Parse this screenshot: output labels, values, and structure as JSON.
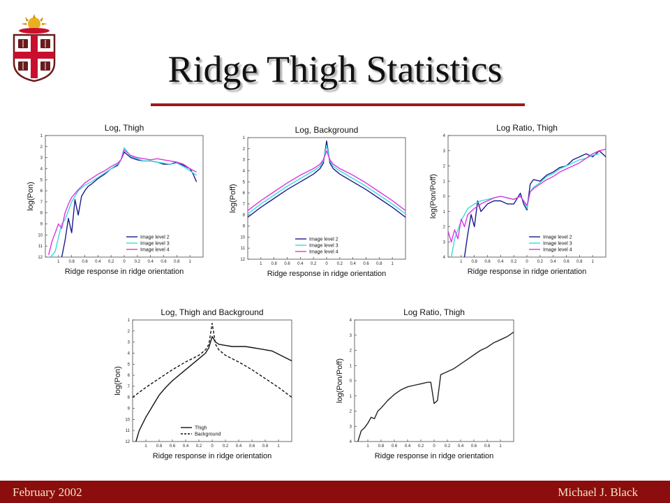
{
  "slide": {
    "title": "Ridge Thigh Statistics",
    "footer_left": "February 2002",
    "footer_right": "Michael J. Black",
    "accent_color": "#9e1b1b",
    "footer_color": "#8b0d0d"
  },
  "logo": {
    "icon": "brown-university-shield-icon"
  },
  "chart_data": [
    {
      "type": "line",
      "title": "Log, Thigh",
      "xlabel": "Ridge response in ridge orientation",
      "ylabel": "log(Pon)",
      "xlim": [
        -1.2,
        1.2
      ],
      "ylim": [
        -12,
        -1
      ],
      "xticks": [
        -1,
        -0.8,
        -0.6,
        -0.4,
        -0.2,
        0,
        0.2,
        0.4,
        0.6,
        0.8,
        1
      ],
      "xtick_labels": [
        "1",
        "0.8",
        "0.6",
        "0.4",
        "0.2",
        "0",
        "0.2",
        "0.4",
        "0.6",
        "0.8",
        "1"
      ],
      "yticks": [
        -1,
        -2,
        -3,
        -4,
        -5,
        -6,
        -7,
        -8,
        -9,
        -10,
        -11,
        -12
      ],
      "ytick_labels": [
        "1",
        "2",
        "3",
        "4",
        "5",
        "6",
        "7",
        "8",
        "9",
        "10",
        "11",
        "12"
      ],
      "legend": "bottom-right",
      "series": [
        {
          "name": "Image level 2",
          "color": "#1a1a8c",
          "x": [
            -0.95,
            -0.9,
            -0.85,
            -0.8,
            -0.75,
            -0.7,
            -0.65,
            -0.6,
            -0.55,
            -0.5,
            -0.4,
            -0.3,
            -0.2,
            -0.1,
            -0.05,
            0,
            0.1,
            0.2,
            0.3,
            0.4,
            0.5,
            0.6,
            0.7,
            0.8,
            0.9,
            1.0,
            1.05,
            1.1
          ],
          "y": [
            -12,
            -10.5,
            -8.5,
            -9.8,
            -6.8,
            -8.2,
            -6.5,
            -6.0,
            -5.6,
            -5.4,
            -4.9,
            -4.5,
            -4.0,
            -3.7,
            -3.2,
            -2.5,
            -3.0,
            -3.2,
            -3.3,
            -3.3,
            -3.4,
            -3.6,
            -3.6,
            -3.4,
            -3.7,
            -4.0,
            -4.5,
            -5.2
          ]
        },
        {
          "name": "Image level 3",
          "color": "#33dddd",
          "x": [
            -1.12,
            -1.05,
            -1.0,
            -0.95,
            -0.9,
            -0.85,
            -0.8,
            -0.75,
            -0.7,
            -0.6,
            -0.5,
            -0.4,
            -0.3,
            -0.2,
            -0.1,
            -0.05,
            0,
            0.1,
            0.2,
            0.3,
            0.4,
            0.5,
            0.6,
            0.7,
            0.8,
            0.9,
            1.0,
            1.1
          ],
          "y": [
            -12,
            -11.5,
            -10.2,
            -9.0,
            -8.6,
            -7.8,
            -7.0,
            -6.5,
            -6.0,
            -5.5,
            -5.2,
            -4.8,
            -4.4,
            -4.0,
            -3.6,
            -3.2,
            -2.1,
            -2.9,
            -3.1,
            -3.3,
            -3.3,
            -3.4,
            -3.5,
            -3.6,
            -3.5,
            -3.8,
            -4.2,
            -4.6
          ]
        },
        {
          "name": "Image level 4",
          "color": "#dd33dd",
          "x": [
            -1.15,
            -1.1,
            -1.05,
            -1.0,
            -0.95,
            -0.9,
            -0.85,
            -0.8,
            -0.7,
            -0.6,
            -0.5,
            -0.4,
            -0.3,
            -0.2,
            -0.1,
            -0.05,
            0,
            0.1,
            0.2,
            0.3,
            0.4,
            0.5,
            0.6,
            0.7,
            0.8,
            0.9,
            1.0,
            1.1
          ],
          "y": [
            -11.8,
            -10.6,
            -9.8,
            -9.0,
            -9.4,
            -8.0,
            -7.2,
            -6.6,
            -5.9,
            -5.3,
            -4.9,
            -4.5,
            -4.2,
            -3.8,
            -3.5,
            -3.2,
            -2.3,
            -2.8,
            -3.0,
            -3.1,
            -3.2,
            -3.1,
            -3.2,
            -3.3,
            -3.4,
            -3.6,
            -4.0,
            -4.3
          ]
        }
      ]
    },
    {
      "type": "line",
      "title": "Log, Background",
      "xlabel": "Ridge response in ridge orientation",
      "ylabel": "log(Poff)",
      "xlim": [
        -1.2,
        1.2
      ],
      "ylim": [
        -12,
        -1
      ],
      "xticks": [
        -1,
        -0.8,
        -0.6,
        -0.4,
        -0.2,
        0,
        0.2,
        0.4,
        0.6,
        0.8,
        1
      ],
      "xtick_labels": [
        "1",
        "0.8",
        "0.6",
        "0.4",
        "0.2",
        "0",
        "0.2",
        "0.4",
        "0.6",
        "0.8",
        "1"
      ],
      "yticks": [
        -1,
        -2,
        -3,
        -4,
        -5,
        -6,
        -7,
        -8,
        -9,
        -10,
        -11,
        -12
      ],
      "ytick_labels": [
        "1",
        "2",
        "3",
        "4",
        "5",
        "6",
        "7",
        "8",
        "9",
        "10",
        "11",
        "12"
      ],
      "legend": "bottom-center",
      "series": [
        {
          "name": "Image level 2",
          "color": "#1a1a8c",
          "x": [
            -1.2,
            -1.0,
            -0.8,
            -0.6,
            -0.4,
            -0.2,
            -0.1,
            -0.05,
            0,
            0.05,
            0.1,
            0.2,
            0.4,
            0.6,
            0.8,
            1.0,
            1.2
          ],
          "y": [
            -8.2,
            -7.3,
            -6.5,
            -5.7,
            -5.0,
            -4.3,
            -3.8,
            -3.3,
            -1.3,
            -3.3,
            -3.8,
            -4.3,
            -5.0,
            -5.7,
            -6.5,
            -7.3,
            -8.2
          ]
        },
        {
          "name": "Image level 3",
          "color": "#33dddd",
          "x": [
            -1.2,
            -1.0,
            -0.8,
            -0.6,
            -0.4,
            -0.2,
            -0.1,
            -0.05,
            0,
            0.05,
            0.1,
            0.2,
            0.4,
            0.6,
            0.8,
            1.0,
            1.2
          ],
          "y": [
            -7.9,
            -7.0,
            -6.2,
            -5.4,
            -4.7,
            -4.0,
            -3.6,
            -3.1,
            -1.7,
            -3.1,
            -3.6,
            -4.0,
            -4.7,
            -5.4,
            -6.2,
            -7.0,
            -7.9
          ]
        },
        {
          "name": "Image level 4",
          "color": "#dd33dd",
          "x": [
            -1.2,
            -1.0,
            -0.8,
            -0.6,
            -0.4,
            -0.2,
            -0.1,
            -0.05,
            0,
            0.05,
            0.1,
            0.2,
            0.4,
            0.6,
            0.8,
            1.0,
            1.2
          ],
          "y": [
            -7.6,
            -6.7,
            -5.9,
            -5.1,
            -4.4,
            -3.8,
            -3.4,
            -3.0,
            -2.2,
            -3.0,
            -3.4,
            -3.8,
            -4.4,
            -5.1,
            -5.9,
            -6.7,
            -7.6
          ]
        }
      ]
    },
    {
      "type": "line",
      "title": "Log Ratio, Thigh",
      "xlabel": "Ridge response in ridge orientation",
      "ylabel": "log(Pon/Poff)",
      "xlim": [
        -1.2,
        1.2
      ],
      "ylim": [
        -4,
        4
      ],
      "xticks": [
        -1,
        -0.8,
        -0.6,
        -0.4,
        -0.2,
        0,
        0.2,
        0.4,
        0.6,
        0.8,
        1
      ],
      "xtick_labels": [
        "1",
        "0.8",
        "0.6",
        "0.4",
        "0.2",
        "0",
        "0.2",
        "0.4",
        "0.6",
        "0.8",
        "1"
      ],
      "yticks": [
        4,
        3,
        2,
        1,
        0,
        -1,
        -2,
        -3,
        -4
      ],
      "ytick_labels": [
        "4",
        "3",
        "2",
        "1",
        "0",
        "1",
        "2",
        "3",
        "4"
      ],
      "legend": "bottom-right",
      "series": [
        {
          "name": "Image level 2",
          "color": "#1a1a8c",
          "x": [
            -0.95,
            -0.9,
            -0.85,
            -0.8,
            -0.75,
            -0.7,
            -0.6,
            -0.5,
            -0.4,
            -0.3,
            -0.2,
            -0.1,
            -0.05,
            0,
            0.05,
            0.1,
            0.2,
            0.3,
            0.4,
            0.5,
            0.6,
            0.7,
            0.8,
            0.9,
            1.0,
            1.1,
            1.2
          ],
          "y": [
            -4,
            -2.5,
            -1.2,
            -2.0,
            -0.3,
            -1.0,
            -0.5,
            -0.3,
            -0.3,
            -0.5,
            -0.5,
            0.2,
            -0.5,
            -0.9,
            0.8,
            1.1,
            1.0,
            1.4,
            1.6,
            1.9,
            2.0,
            2.4,
            2.6,
            2.8,
            2.6,
            3.0,
            2.6
          ]
        },
        {
          "name": "Image level 3",
          "color": "#33dddd",
          "x": [
            -1.15,
            -1.1,
            -1.05,
            -1.0,
            -0.95,
            -0.9,
            -0.8,
            -0.7,
            -0.6,
            -0.5,
            -0.4,
            -0.3,
            -0.2,
            -0.1,
            -0.05,
            0,
            0.05,
            0.1,
            0.2,
            0.3,
            0.4,
            0.5,
            0.6,
            0.7,
            0.8,
            0.9,
            1.0,
            1.1
          ],
          "y": [
            -4,
            -2.8,
            -2.2,
            -1.6,
            -1.2,
            -0.8,
            -0.5,
            -0.3,
            -0.2,
            -0.1,
            0.0,
            -0.1,
            -0.2,
            0.0,
            -0.3,
            -0.8,
            0.3,
            0.6,
            0.9,
            1.3,
            1.5,
            1.8,
            2.0,
            2.2,
            2.4,
            2.5,
            2.7,
            2.8
          ]
        },
        {
          "name": "Image level 4",
          "color": "#dd33dd",
          "x": [
            -1.2,
            -1.15,
            -1.1,
            -1.05,
            -1.0,
            -0.95,
            -0.9,
            -0.8,
            -0.7,
            -0.6,
            -0.5,
            -0.4,
            -0.3,
            -0.2,
            -0.1,
            -0.05,
            0,
            0.05,
            0.1,
            0.2,
            0.3,
            0.4,
            0.5,
            0.6,
            0.7,
            0.8,
            0.9,
            1.0,
            1.1,
            1.2
          ],
          "y": [
            -2.3,
            -3.0,
            -2.2,
            -2.8,
            -1.5,
            -2.0,
            -1.2,
            -0.8,
            -0.5,
            -0.3,
            -0.1,
            0.0,
            -0.1,
            -0.2,
            0.0,
            -0.3,
            -0.6,
            0.3,
            0.5,
            0.8,
            1.1,
            1.3,
            1.6,
            1.8,
            2.0,
            2.2,
            2.5,
            2.8,
            3.0,
            3.1
          ]
        }
      ]
    },
    {
      "type": "line",
      "title": "Log, Thigh and Background",
      "xlabel": "Ridge response in ridge orientation",
      "ylabel": "log(Pon)",
      "xlim": [
        -1.2,
        1.2
      ],
      "ylim": [
        -12,
        -1
      ],
      "xticks": [
        -1,
        -0.8,
        -0.6,
        -0.4,
        -0.2,
        0,
        0.2,
        0.4,
        0.6,
        0.8,
        1
      ],
      "xtick_labels": [
        "1",
        "0.8",
        "0.6",
        "0.4",
        "0.2",
        "0",
        "0.2",
        "0.4",
        "0.6",
        "0.8",
        "1"
      ],
      "yticks": [
        -1,
        -2,
        -3,
        -4,
        -5,
        -6,
        -7,
        -8,
        -9,
        -10,
        -11,
        -12
      ],
      "ytick_labels": [
        "1",
        "2",
        "3",
        "4",
        "5",
        "6",
        "7",
        "8",
        "9",
        "10",
        "11",
        "12"
      ],
      "legend": "bottom-center",
      "series": [
        {
          "name": "Thigh",
          "color": "#111111",
          "dash": false,
          "x": [
            -1.15,
            -1.1,
            -1.0,
            -0.9,
            -0.8,
            -0.7,
            -0.6,
            -0.5,
            -0.4,
            -0.3,
            -0.2,
            -0.1,
            -0.05,
            0,
            0.05,
            0.1,
            0.2,
            0.3,
            0.4,
            0.5,
            0.6,
            0.7,
            0.8,
            0.9,
            1.0,
            1.1,
            1.2
          ],
          "y": [
            -12,
            -11.0,
            -9.8,
            -8.8,
            -7.8,
            -7.1,
            -6.5,
            -6.0,
            -5.5,
            -5.0,
            -4.5,
            -4.0,
            -3.5,
            -2.5,
            -3.0,
            -3.2,
            -3.3,
            -3.4,
            -3.4,
            -3.4,
            -3.5,
            -3.6,
            -3.7,
            -3.8,
            -4.1,
            -4.4,
            -4.7
          ]
        },
        {
          "name": "Background",
          "color": "#111111",
          "dash": true,
          "x": [
            -1.2,
            -1.0,
            -0.8,
            -0.6,
            -0.4,
            -0.2,
            -0.1,
            -0.05,
            0,
            0.05,
            0.1,
            0.2,
            0.4,
            0.6,
            0.8,
            1.0,
            1.2
          ],
          "y": [
            -8.0,
            -7.1,
            -6.3,
            -5.5,
            -4.8,
            -4.2,
            -3.7,
            -3.2,
            -1.3,
            -3.2,
            -3.7,
            -4.2,
            -4.8,
            -5.5,
            -6.3,
            -7.1,
            -8.0
          ]
        }
      ]
    },
    {
      "type": "line",
      "title": "Log Ratio, Thigh",
      "xlabel": "Ridge response in ridge orientation",
      "ylabel": "log(Pon/Poff)",
      "xlim": [
        -1.2,
        1.2
      ],
      "ylim": [
        -4,
        4
      ],
      "xticks": [
        -1,
        -0.8,
        -0.6,
        -0.4,
        -0.2,
        0,
        0.2,
        0.4,
        0.6,
        0.8,
        1
      ],
      "xtick_labels": [
        "1",
        "0.8",
        "0.6",
        "0.4",
        "0.2",
        "0",
        "0.2",
        "0.4",
        "0.6",
        "0.8",
        "1"
      ],
      "yticks": [
        4,
        3,
        2,
        1,
        0,
        -1,
        -2,
        -3,
        -4
      ],
      "ytick_labels": [
        "4",
        "3",
        "2",
        "1",
        "0",
        "1",
        "2",
        "3",
        "4"
      ],
      "legend": "none",
      "series": [
        {
          "name": "",
          "color": "#222222",
          "x": [
            -1.15,
            -1.1,
            -1.05,
            -1.0,
            -0.95,
            -0.9,
            -0.85,
            -0.8,
            -0.7,
            -0.6,
            -0.5,
            -0.4,
            -0.3,
            -0.2,
            -0.1,
            -0.05,
            0,
            0.05,
            0.1,
            0.2,
            0.3,
            0.4,
            0.5,
            0.6,
            0.7,
            0.8,
            0.9,
            1.0,
            1.1,
            1.2
          ],
          "y": [
            -4,
            -3.3,
            -3.1,
            -2.8,
            -2.4,
            -2.5,
            -2.0,
            -1.8,
            -1.3,
            -0.9,
            -0.6,
            -0.4,
            -0.3,
            -0.2,
            -0.1,
            -0.1,
            -1.5,
            -1.3,
            0.4,
            0.6,
            0.8,
            1.1,
            1.4,
            1.7,
            2.0,
            2.2,
            2.5,
            2.7,
            2.9,
            3.2
          ]
        }
      ]
    }
  ]
}
